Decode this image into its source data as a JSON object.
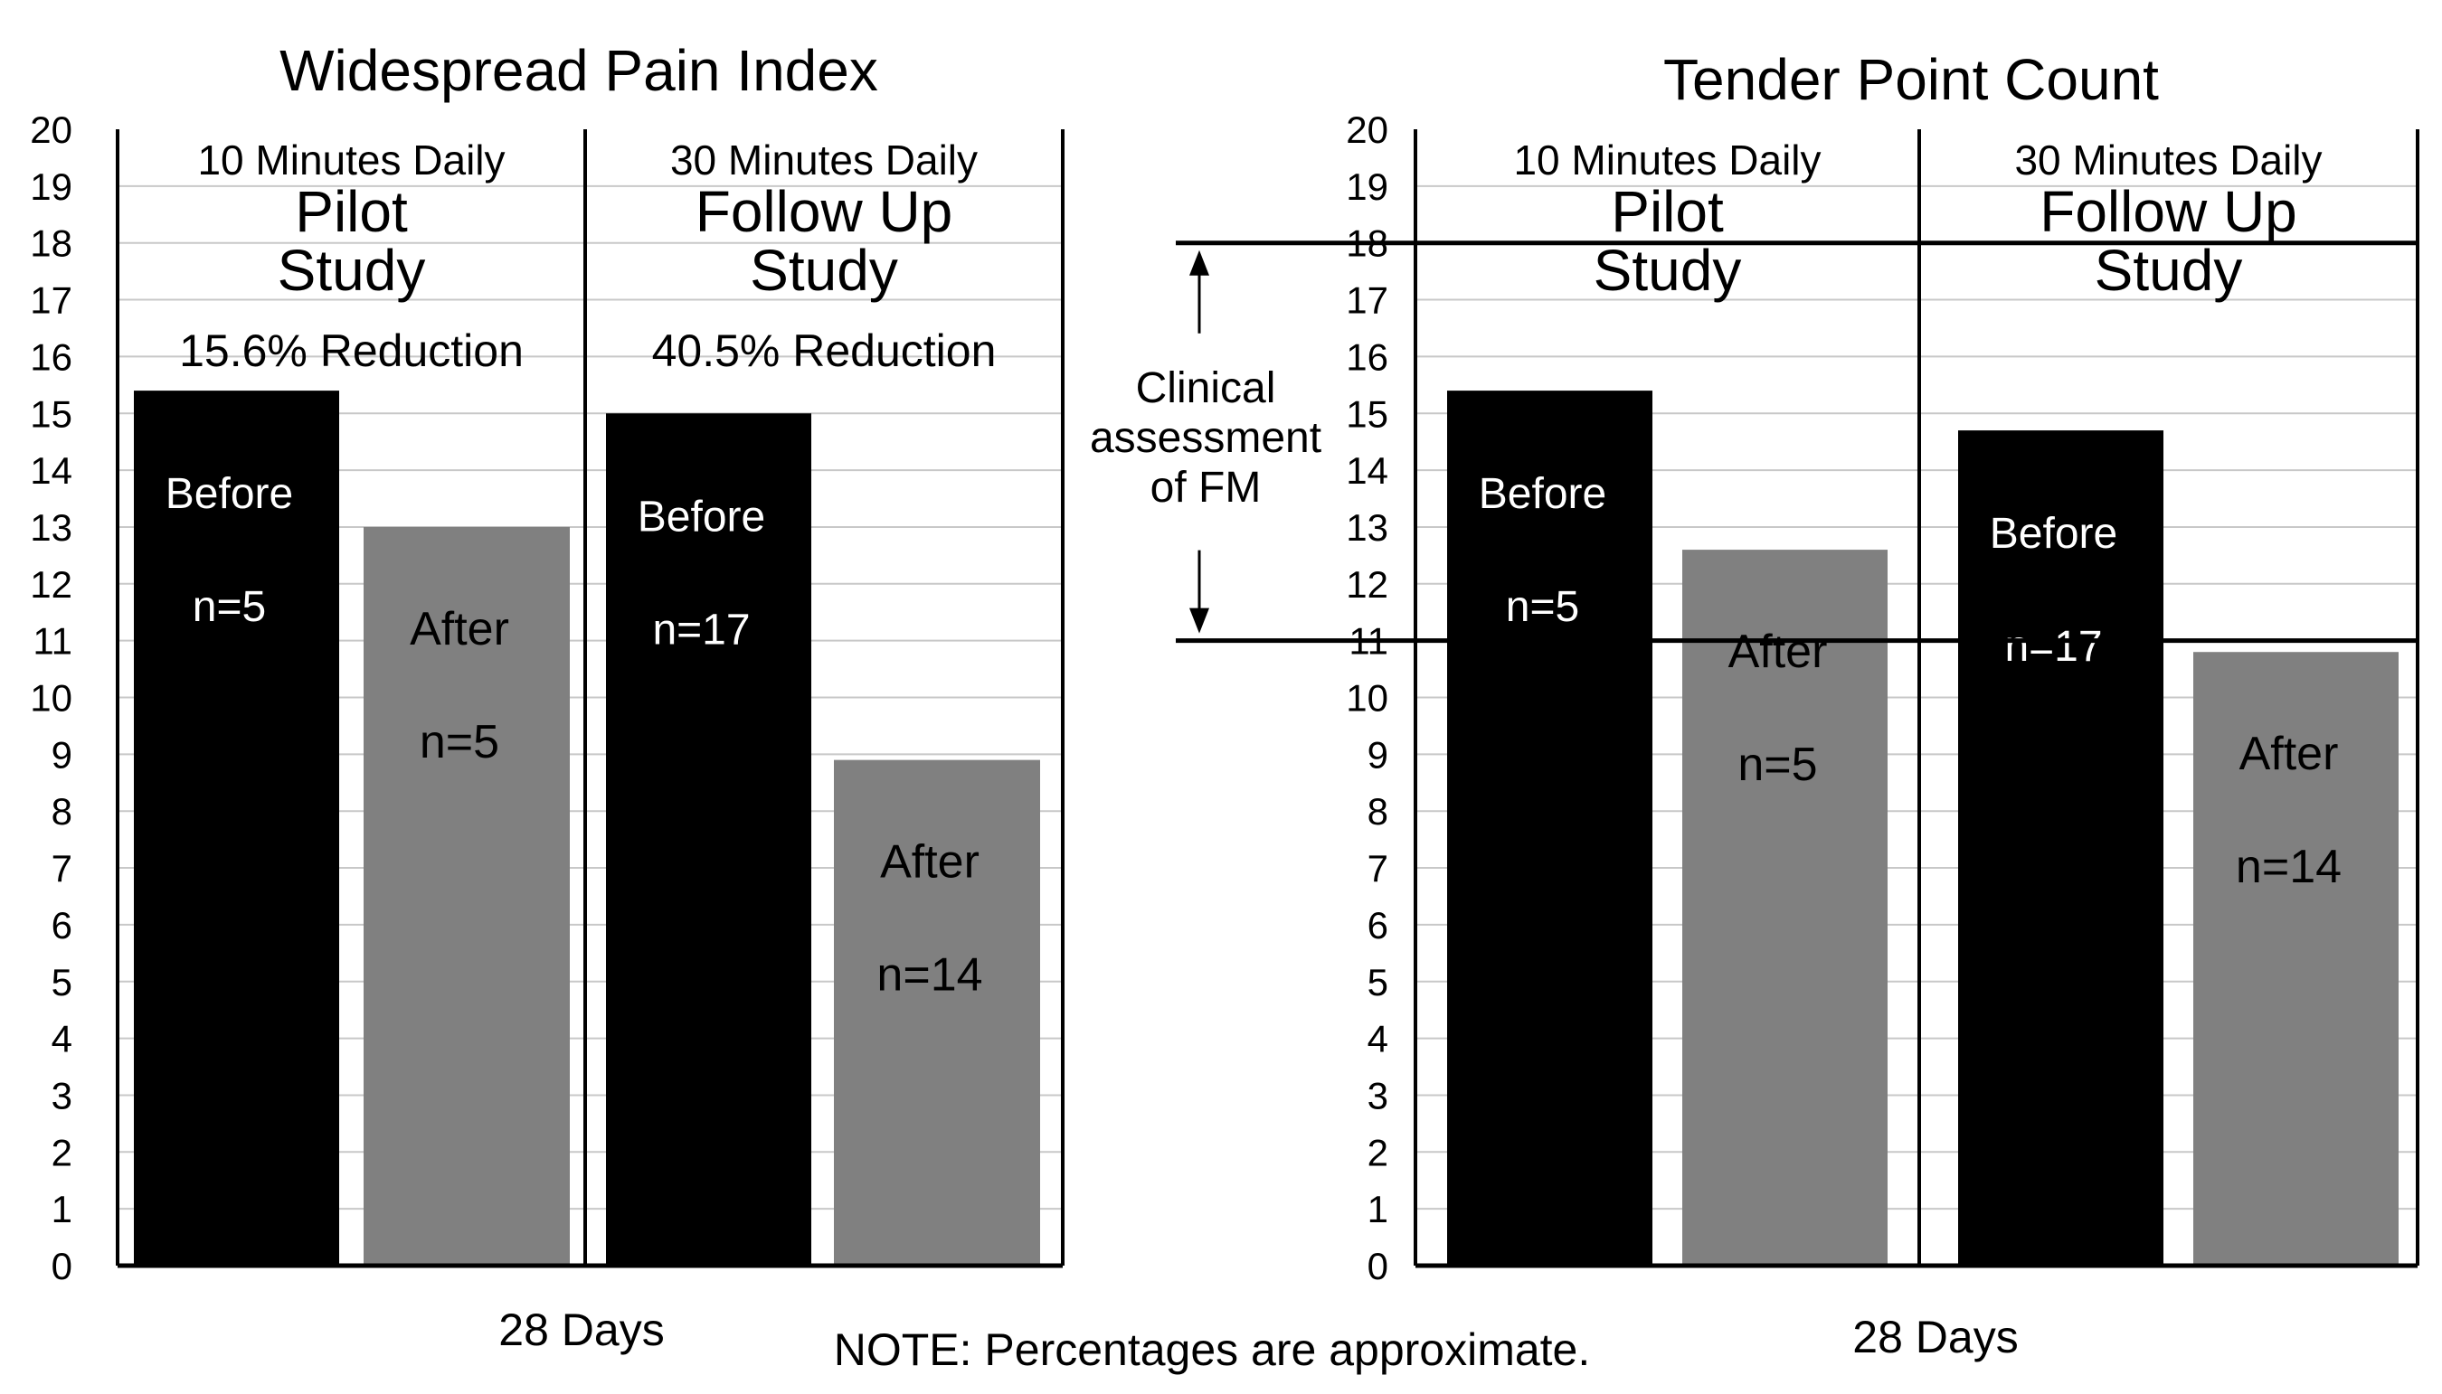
{
  "note": "NOTE: Percentages are approximate.",
  "annotation": {
    "lines": [
      "Clinical",
      "assessment",
      "of FM"
    ],
    "range": [
      11,
      18
    ]
  },
  "colors": {
    "before": "#000000",
    "after": "#808080",
    "grid": "#c8c8c8",
    "axis": "#000000"
  },
  "chart_data": [
    {
      "type": "bar",
      "title": "Widespread Pain Index",
      "xlabel": "28 Days",
      "ylabel": "",
      "ylim": [
        0,
        20
      ],
      "yticks": [
        "0",
        "1",
        "2",
        "3",
        "4",
        "5",
        "6",
        "7",
        "8",
        "9",
        "10",
        "11",
        "12",
        "13",
        "14",
        "15",
        "16",
        "17",
        "18",
        "19",
        "20"
      ],
      "grid": true,
      "groups": [
        {
          "header": "10 Minutes Daily",
          "study": [
            "Pilot",
            "Study"
          ],
          "reduction": "15.6% Reduction",
          "bars": [
            {
              "label": "Before",
              "n": "n=5",
              "value": 15.4,
              "kind": "before"
            },
            {
              "label": "After",
              "n": "n=5",
              "value": 13.0,
              "kind": "after"
            }
          ]
        },
        {
          "header": "30 Minutes Daily",
          "study": [
            "Follow Up",
            "Study"
          ],
          "reduction": "40.5% Reduction",
          "bars": [
            {
              "label": "Before",
              "n": "n=17",
              "value": 15.0,
              "kind": "before"
            },
            {
              "label": "After",
              "n": "n=14",
              "value": 8.9,
              "kind": "after"
            }
          ]
        }
      ]
    },
    {
      "type": "bar",
      "title": "Tender Point Count",
      "xlabel": "28 Days",
      "ylabel": "",
      "ylim": [
        0,
        20
      ],
      "yticks": [
        "0",
        "1",
        "2",
        "3",
        "4",
        "5",
        "6",
        "7",
        "8",
        "9",
        "10",
        "11",
        "12",
        "13",
        "14",
        "15",
        "16",
        "17",
        "18",
        "19",
        "20"
      ],
      "grid": true,
      "reference_lines": [
        11,
        18
      ],
      "groups": [
        {
          "header": "10 Minutes Daily",
          "study": [
            "Pilot",
            "Study"
          ],
          "reduction": "",
          "bars": [
            {
              "label": "Before",
              "n": "n=5",
              "value": 15.4,
              "kind": "before"
            },
            {
              "label": "After",
              "n": "n=5",
              "value": 12.6,
              "kind": "after"
            }
          ]
        },
        {
          "header": "30 Minutes Daily",
          "study": [
            "Follow Up",
            "Study"
          ],
          "reduction": "",
          "bars": [
            {
              "label": "Before",
              "n": "n=17",
              "value": 14.7,
              "kind": "before"
            },
            {
              "label": "After",
              "n": "n=14",
              "value": 10.8,
              "kind": "after"
            }
          ]
        }
      ]
    }
  ]
}
